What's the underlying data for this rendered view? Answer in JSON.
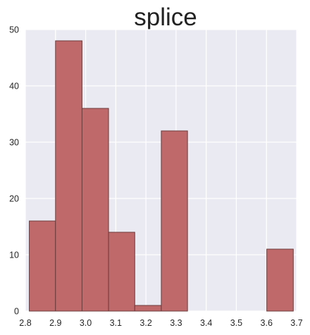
{
  "chart_data": {
    "type": "histogram",
    "title": "splice",
    "xlabel": "",
    "ylabel": "",
    "xlim": [
      2.8,
      3.7
    ],
    "ylim": [
      0,
      50
    ],
    "x_ticks": [
      "2.8",
      "2.9",
      "3.0",
      "3.1",
      "3.2",
      "3.3",
      "3.4",
      "3.5",
      "3.6",
      "3.7"
    ],
    "y_ticks": [
      "0",
      "10",
      "20",
      "30",
      "40",
      "50"
    ],
    "bins": [
      {
        "start": 2.813,
        "end": 2.9,
        "count": 16
      },
      {
        "start": 2.9,
        "end": 2.988,
        "count": 48
      },
      {
        "start": 2.988,
        "end": 3.076,
        "count": 36
      },
      {
        "start": 3.076,
        "end": 3.163,
        "count": 14
      },
      {
        "start": 3.163,
        "end": 3.251,
        "count": 1
      },
      {
        "start": 3.251,
        "end": 3.338,
        "count": 32
      },
      {
        "start": 3.338,
        "end": 3.426,
        "count": 0
      },
      {
        "start": 3.426,
        "end": 3.514,
        "count": 0
      },
      {
        "start": 3.514,
        "end": 3.601,
        "count": 0
      },
      {
        "start": 3.601,
        "end": 3.689,
        "count": 11
      }
    ],
    "grid": true,
    "bar_color": "#c0696a",
    "bar_edge_color": "#6b3a3a",
    "background_color": "#eaeaf2",
    "grid_color": "#ffffff"
  }
}
